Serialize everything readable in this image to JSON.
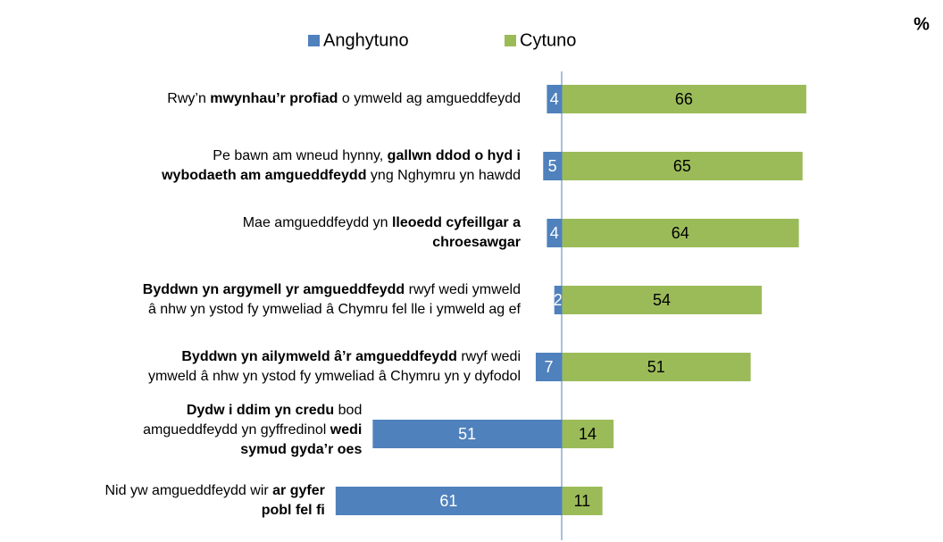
{
  "chart_data": {
    "type": "diverging-bar",
    "unit_label": "%",
    "categories": [
      [
        [
          {
            "text": "Rwy’n ",
            "bold": false
          },
          {
            "text": "mwynhau’r profiad",
            "bold": true
          },
          {
            "text": " o ymweld ag amgueddfeydd",
            "bold": false
          }
        ]
      ],
      [
        [
          {
            "text": "Pe bawn am wneud hynny, ",
            "bold": false
          },
          {
            "text": "gallwn ddod o hyd i",
            "bold": true
          }
        ],
        [
          {
            "text": "wybodaeth am amgueddfeydd",
            "bold": true
          },
          {
            "text": " yng Nghymru yn hawdd",
            "bold": false
          }
        ]
      ],
      [
        [
          {
            "text": "Mae amgueddfeydd yn ",
            "bold": false
          },
          {
            "text": "lleoedd cyfeillgar a",
            "bold": true
          }
        ],
        [
          {
            "text": "chroesawgar",
            "bold": true
          }
        ]
      ],
      [
        [
          {
            "text": "Byddwn yn argymell yr amgueddfeydd",
            "bold": true
          },
          {
            "text": " rwyf wedi ymweld",
            "bold": false
          }
        ],
        [
          {
            "text": "â nhw yn ystod fy ymweliad â Chymru fel lle i ymweld ag ef",
            "bold": false
          }
        ]
      ],
      [
        [
          {
            "text": "Byddwn yn ailymweld â’r amgueddfeydd",
            "bold": true
          },
          {
            "text": " rwyf wedi",
            "bold": false
          }
        ],
        [
          {
            "text": "ymweld â nhw yn ystod fy ymweliad â Chymru yn y dyfodol",
            "bold": false
          }
        ]
      ],
      [
        [
          {
            "text": "Dydw i ddim yn credu",
            "bold": true
          },
          {
            "text": " bod",
            "bold": false
          }
        ],
        [
          {
            "text": "amgueddfeydd yn gyffredinol ",
            "bold": false
          },
          {
            "text": "wedi",
            "bold": true
          }
        ],
        [
          {
            "text": "symud gyda’r oes",
            "bold": true
          }
        ]
      ],
      [
        [
          {
            "text": "Nid yw amgueddfeydd wir ",
            "bold": false
          },
          {
            "text": "ar gyfer",
            "bold": true
          }
        ],
        [
          {
            "text": "pobl fel fi",
            "bold": true
          }
        ]
      ]
    ],
    "series": [
      {
        "name": "Anghytuno",
        "color": "#4f81bd",
        "side": "left",
        "label_color": "#ffffff",
        "values": [
          4,
          5,
          4,
          2,
          7,
          51,
          61
        ]
      },
      {
        "name": "Cytuno",
        "color": "#9bbb59",
        "side": "right",
        "label_color": "#000000",
        "values": [
          66,
          65,
          64,
          54,
          51,
          14,
          11
        ]
      }
    ]
  }
}
